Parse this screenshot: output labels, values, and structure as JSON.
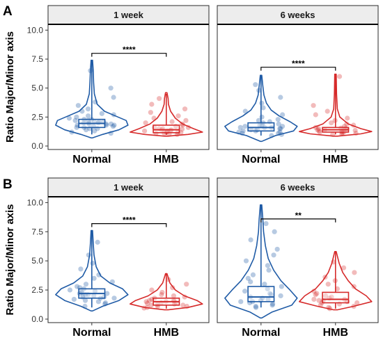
{
  "chart_data": [
    {
      "type": "violin",
      "panel_label": "A",
      "ylabel": "Ratio Major/Minor axis",
      "ylim": [
        -0.3,
        10.5
      ],
      "yticks": [
        "0.0",
        "2.5",
        "5.0",
        "7.5",
        "10.0"
      ],
      "categories": [
        "Normal",
        "HMB"
      ],
      "colors": {
        "Normal": "#1f5ba6",
        "HMB": "#d62a2a"
      },
      "facets": [
        {
          "strip": "1 week",
          "significance": "****",
          "groups": [
            {
              "name": "Normal",
              "min": 1.0,
              "q1": 1.6,
              "median": 1.95,
              "q3": 2.3,
              "max": 7.4,
              "density": [
                [
                  0.7,
                  0.02
                ],
                [
                  1.0,
                  0.3
                ],
                [
                  1.4,
                  0.75
                ],
                [
                  1.8,
                  1.0
                ],
                [
                  2.2,
                  0.95
                ],
                [
                  2.6,
                  0.65
                ],
                [
                  3.0,
                  0.35
                ],
                [
                  3.6,
                  0.15
                ],
                [
                  4.5,
                  0.07
                ],
                [
                  5.5,
                  0.05
                ],
                [
                  6.5,
                  0.04
                ],
                [
                  7.4,
                  0.02
                ]
              ],
              "points": [
                1.1,
                1.2,
                1.3,
                1.4,
                1.5,
                1.5,
                1.6,
                1.6,
                1.7,
                1.7,
                1.8,
                1.8,
                1.8,
                1.9,
                1.9,
                1.9,
                2.0,
                2.0,
                2.0,
                2.1,
                2.1,
                2.1,
                2.2,
                2.2,
                2.3,
                2.3,
                2.4,
                2.5,
                2.6,
                2.7,
                2.8,
                3.0,
                3.2,
                3.5,
                3.8,
                4.2,
                5.0,
                6.5
              ]
            },
            {
              "name": "HMB",
              "min": 0.95,
              "q1": 1.15,
              "median": 1.4,
              "q3": 1.8,
              "max": 4.5,
              "density": [
                [
                  0.85,
                  0.05
                ],
                [
                  1.0,
                  0.6
                ],
                [
                  1.2,
                  1.0
                ],
                [
                  1.5,
                  0.75
                ],
                [
                  1.9,
                  0.45
                ],
                [
                  2.4,
                  0.25
                ],
                [
                  3.0,
                  0.12
                ],
                [
                  3.6,
                  0.06
                ],
                [
                  4.1,
                  0.05
                ],
                [
                  4.6,
                  0.02
                ]
              ],
              "points": [
                1.0,
                1.05,
                1.1,
                1.1,
                1.15,
                1.2,
                1.2,
                1.25,
                1.3,
                1.3,
                1.35,
                1.4,
                1.4,
                1.45,
                1.5,
                1.5,
                1.6,
                1.6,
                1.7,
                1.8,
                1.9,
                2.0,
                2.1,
                2.2,
                2.4,
                2.6,
                2.9,
                3.2,
                3.6,
                4.1
              ]
            }
          ]
        },
        {
          "strip": "6 weeks",
          "significance": "****",
          "groups": [
            {
              "name": "Normal",
              "min": 0.9,
              "q1": 1.3,
              "median": 1.6,
              "q3": 2.0,
              "max": 6.1,
              "density": [
                [
                  0.4,
                  0.02
                ],
                [
                  0.9,
                  0.4
                ],
                [
                  1.3,
                  0.9
                ],
                [
                  1.7,
                  1.0
                ],
                [
                  2.1,
                  0.8
                ],
                [
                  2.6,
                  0.5
                ],
                [
                  3.1,
                  0.28
                ],
                [
                  3.7,
                  0.15
                ],
                [
                  4.4,
                  0.08
                ],
                [
                  5.2,
                  0.05
                ],
                [
                  6.1,
                  0.02
                ]
              ],
              "points": [
                0.9,
                1.0,
                1.1,
                1.1,
                1.2,
                1.2,
                1.3,
                1.3,
                1.4,
                1.4,
                1.5,
                1.5,
                1.6,
                1.6,
                1.6,
                1.7,
                1.7,
                1.8,
                1.8,
                1.9,
                2.0,
                2.1,
                2.2,
                2.3,
                2.5,
                2.7,
                3.0,
                3.3,
                3.7,
                4.2,
                4.8,
                5.3
              ]
            },
            {
              "name": "HMB",
              "min": 1.0,
              "q1": 1.2,
              "median": 1.4,
              "q3": 1.6,
              "max": 6.2,
              "density": [
                [
                  0.85,
                  0.05
                ],
                [
                  1.05,
                  0.7
                ],
                [
                  1.25,
                  1.0
                ],
                [
                  1.5,
                  0.7
                ],
                [
                  1.9,
                  0.35
                ],
                [
                  2.5,
                  0.12
                ],
                [
                  3.2,
                  0.05
                ],
                [
                  4.5,
                  0.03
                ],
                [
                  6.2,
                  0.02
                ]
              ],
              "points": [
                1.0,
                1.05,
                1.1,
                1.15,
                1.2,
                1.2,
                1.25,
                1.3,
                1.3,
                1.35,
                1.4,
                1.4,
                1.45,
                1.5,
                1.5,
                1.55,
                1.6,
                1.7,
                1.8,
                1.9,
                2.0,
                2.2,
                2.4,
                2.7,
                3.0,
                3.5,
                6.0
              ]
            }
          ]
        }
      ]
    },
    {
      "type": "violin",
      "panel_label": "B",
      "ylabel": "Ratio Major/Minor axis",
      "ylim": [
        -0.3,
        10.5
      ],
      "yticks": [
        "0.0",
        "2.5",
        "5.0",
        "7.5",
        "10.0"
      ],
      "categories": [
        "Normal",
        "HMB"
      ],
      "colors": {
        "Normal": "#1f5ba6",
        "HMB": "#d62a2a"
      },
      "facets": [
        {
          "strip": "1 week",
          "significance": "****",
          "groups": [
            {
              "name": "Normal",
              "min": 1.0,
              "q1": 1.8,
              "median": 2.2,
              "q3": 2.6,
              "max": 7.6,
              "density": [
                [
                  0.7,
                  0.02
                ],
                [
                  1.1,
                  0.3
                ],
                [
                  1.6,
                  0.75
                ],
                [
                  2.1,
                  1.0
                ],
                [
                  2.6,
                  0.85
                ],
                [
                  3.1,
                  0.5
                ],
                [
                  3.7,
                  0.25
                ],
                [
                  4.5,
                  0.12
                ],
                [
                  5.5,
                  0.06
                ],
                [
                  6.5,
                  0.04
                ],
                [
                  7.6,
                  0.02
                ]
              ],
              "points": [
                1.1,
                1.3,
                1.4,
                1.5,
                1.6,
                1.7,
                1.8,
                1.8,
                1.9,
                1.9,
                2.0,
                2.0,
                2.1,
                2.1,
                2.2,
                2.2,
                2.3,
                2.3,
                2.4,
                2.5,
                2.6,
                2.7,
                2.8,
                3.0,
                3.2,
                3.5,
                3.8,
                4.3,
                4.8,
                5.5,
                6.6
              ]
            },
            {
              "name": "HMB",
              "min": 0.9,
              "q1": 1.2,
              "median": 1.5,
              "q3": 1.8,
              "max": 3.9,
              "density": [
                [
                  0.8,
                  0.05
                ],
                [
                  1.0,
                  0.6
                ],
                [
                  1.3,
                  1.0
                ],
                [
                  1.6,
                  0.85
                ],
                [
                  2.0,
                  0.5
                ],
                [
                  2.5,
                  0.25
                ],
                [
                  3.1,
                  0.1
                ],
                [
                  3.6,
                  0.05
                ],
                [
                  3.9,
                  0.02
                ]
              ],
              "points": [
                0.95,
                1.0,
                1.1,
                1.1,
                1.2,
                1.2,
                1.25,
                1.3,
                1.35,
                1.4,
                1.4,
                1.5,
                1.5,
                1.55,
                1.6,
                1.6,
                1.7,
                1.8,
                1.9,
                2.0,
                2.1,
                2.3,
                2.5,
                2.7,
                3.0,
                3.4
              ]
            }
          ]
        },
        {
          "strip": "6 weeks",
          "significance": "**",
          "groups": [
            {
              "name": "Normal",
              "min": 1.0,
              "q1": 1.5,
              "median": 1.9,
              "q3": 2.8,
              "max": 9.8,
              "density": [
                [
                  0.1,
                  0.02
                ],
                [
                  0.6,
                  0.3
                ],
                [
                  1.2,
                  0.85
                ],
                [
                  1.8,
                  1.0
                ],
                [
                  2.5,
                  0.8
                ],
                [
                  3.3,
                  0.55
                ],
                [
                  4.2,
                  0.35
                ],
                [
                  5.2,
                  0.2
                ],
                [
                  6.3,
                  0.12
                ],
                [
                  7.5,
                  0.07
                ],
                [
                  8.6,
                  0.05
                ],
                [
                  9.8,
                  0.02
                ]
              ],
              "points": [
                1.0,
                1.1,
                1.2,
                1.3,
                1.4,
                1.5,
                1.5,
                1.6,
                1.7,
                1.8,
                1.9,
                2.0,
                2.1,
                2.2,
                2.4,
                2.6,
                2.8,
                3.0,
                3.2,
                3.5,
                3.8,
                4.2,
                4.6,
                5.0,
                5.5,
                6.0,
                6.8,
                7.5,
                8.2
              ]
            },
            {
              "name": "HMB",
              "min": 0.9,
              "q1": 1.4,
              "median": 1.7,
              "q3": 2.3,
              "max": 5.8,
              "density": [
                [
                  0.8,
                  0.05
                ],
                [
                  1.1,
                  0.5
                ],
                [
                  1.5,
                  1.0
                ],
                [
                  2.0,
                  0.85
                ],
                [
                  2.6,
                  0.55
                ],
                [
                  3.3,
                  0.35
                ],
                [
                  4.0,
                  0.2
                ],
                [
                  4.8,
                  0.1
                ],
                [
                  5.8,
                  0.02
                ]
              ],
              "points": [
                0.9,
                1.0,
                1.1,
                1.2,
                1.3,
                1.4,
                1.4,
                1.5,
                1.6,
                1.6,
                1.7,
                1.7,
                1.8,
                1.9,
                2.0,
                2.1,
                2.2,
                2.4,
                2.6,
                2.8,
                3.0,
                3.3,
                3.6,
                4.0,
                4.4,
                4.9
              ]
            }
          ]
        }
      ]
    }
  ]
}
